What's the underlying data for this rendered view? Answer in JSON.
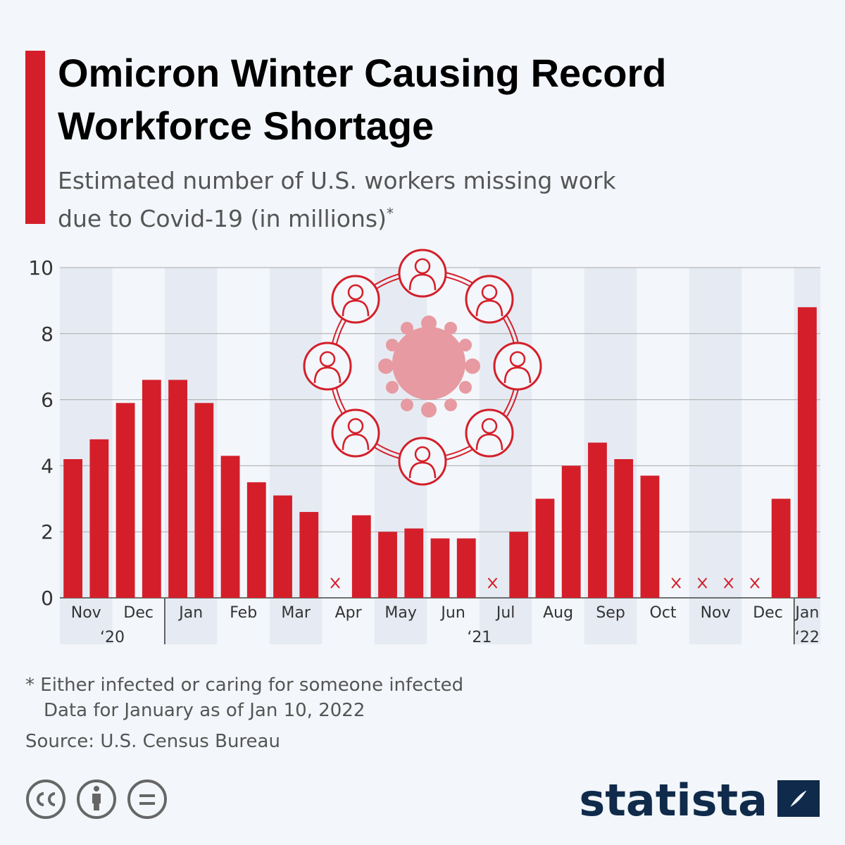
{
  "chart_data": {
    "type": "bar",
    "title": "Omicron Winter Causing Record Workforce Shortage",
    "subtitle": "Estimated number of U.S. workers missing work due to Covid-19 (in millions)",
    "subtitle_mark": "*",
    "categories": [
      "Nov",
      null,
      "Dec",
      null,
      "Jan",
      null,
      "Feb",
      null,
      "Mar",
      null,
      "Apr",
      null,
      "May",
      null,
      "Jun",
      null,
      "Jul",
      null,
      "Aug",
      null,
      "Sep",
      null,
      "Oct",
      null,
      "Nov",
      null,
      "Dec",
      null,
      "Jan"
    ],
    "years": [
      "‘20",
      null,
      null,
      null,
      "‘21",
      null,
      null,
      null,
      null,
      null,
      null,
      null,
      null,
      null,
      null,
      null,
      null,
      null,
      null,
      null,
      null,
      null,
      null,
      null,
      null,
      null,
      null,
      null,
      "‘22"
    ],
    "values": [
      4.2,
      4.8,
      5.9,
      6.6,
      6.6,
      5.9,
      4.3,
      3.5,
      3.1,
      2.6,
      null,
      2.5,
      2.0,
      2.1,
      1.8,
      1.8,
      null,
      2.0,
      3.0,
      4.0,
      4.7,
      4.2,
      3.7,
      null,
      null,
      null,
      null,
      3.0,
      8.8
    ],
    "color": "#d41f2a",
    "ylim": [
      0,
      10
    ],
    "yticks": [
      0,
      2,
      4,
      6,
      8,
      10
    ],
    "grid": true,
    "notes": [
      "* Either infected or caring for someone infected",
      "Data for January as of Jan 10, 2022"
    ],
    "source": "Source: U.S. Census Bureau",
    "brand": "statista"
  }
}
